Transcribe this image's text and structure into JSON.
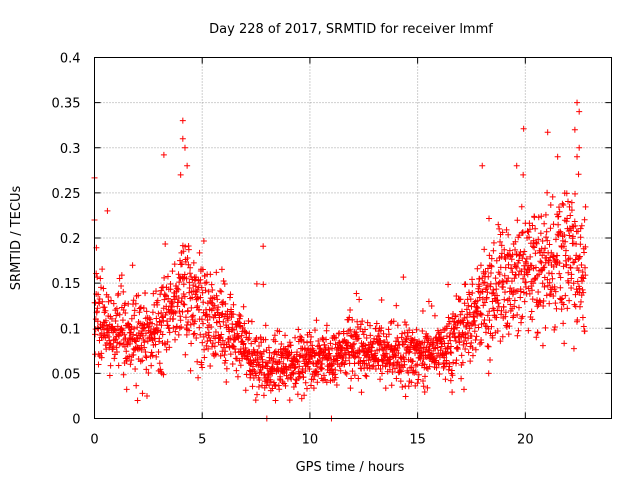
{
  "chart_data": {
    "type": "scatter",
    "title": "Day 228 of 2017, SRMTID for receiver lmmf",
    "xlabel": "GPS time / hours",
    "ylabel": "SRMTID / TECUs",
    "xlim": [
      0,
      24
    ],
    "ylim": [
      0,
      0.4
    ],
    "xticks": [
      0,
      5,
      10,
      15,
      20
    ],
    "yticks": [
      0,
      0.05,
      0.1,
      0.15,
      0.2,
      0.25,
      0.3,
      0.35,
      0.4
    ],
    "xtick_labels": [
      "0",
      "5",
      "10",
      "15",
      "20"
    ],
    "ytick_labels": [
      "0",
      "0.05",
      "0.1",
      "0.15",
      "0.2",
      "0.25",
      "0.3",
      "0.35",
      "0.4"
    ],
    "grid": true,
    "marker": "plus",
    "color": "#ff0000",
    "trend": [
      {
        "x": 0.0,
        "y": 0.115
      },
      {
        "x": 1.0,
        "y": 0.095
      },
      {
        "x": 2.0,
        "y": 0.09
      },
      {
        "x": 3.0,
        "y": 0.1
      },
      {
        "x": 4.0,
        "y": 0.135
      },
      {
        "x": 5.0,
        "y": 0.12
      },
      {
        "x": 6.0,
        "y": 0.1
      },
      {
        "x": 7.0,
        "y": 0.08
      },
      {
        "x": 8.0,
        "y": 0.055
      },
      {
        "x": 9.0,
        "y": 0.06
      },
      {
        "x": 10.0,
        "y": 0.065
      },
      {
        "x": 11.0,
        "y": 0.07
      },
      {
        "x": 12.0,
        "y": 0.075
      },
      {
        "x": 13.0,
        "y": 0.075
      },
      {
        "x": 14.0,
        "y": 0.07
      },
      {
        "x": 15.0,
        "y": 0.07
      },
      {
        "x": 16.0,
        "y": 0.075
      },
      {
        "x": 17.0,
        "y": 0.09
      },
      {
        "x": 18.0,
        "y": 0.13
      },
      {
        "x": 19.0,
        "y": 0.15
      },
      {
        "x": 20.0,
        "y": 0.16
      },
      {
        "x": 21.0,
        "y": 0.17
      },
      {
        "x": 22.0,
        "y": 0.185
      },
      {
        "x": 22.8,
        "y": 0.15
      }
    ],
    "spread": [
      {
        "x": 0.0,
        "s": 0.03
      },
      {
        "x": 3.0,
        "s": 0.03
      },
      {
        "x": 4.5,
        "s": 0.045
      },
      {
        "x": 6.0,
        "s": 0.03
      },
      {
        "x": 8.0,
        "s": 0.02
      },
      {
        "x": 12.0,
        "s": 0.022
      },
      {
        "x": 16.0,
        "s": 0.02
      },
      {
        "x": 17.5,
        "s": 0.035
      },
      {
        "x": 19.0,
        "s": 0.045
      },
      {
        "x": 22.0,
        "s": 0.05
      },
      {
        "x": 22.8,
        "s": 0.05
      }
    ],
    "sample_count": 2200,
    "x_range": [
      0.0,
      22.8
    ],
    "highlights": [
      {
        "x": 0.0,
        "y": 0.22
      },
      {
        "x": 0.6,
        "y": 0.23
      },
      {
        "x": 4.1,
        "y": 0.33
      },
      {
        "x": 4.1,
        "y": 0.31
      },
      {
        "x": 4.2,
        "y": 0.3
      },
      {
        "x": 4.3,
        "y": 0.28
      },
      {
        "x": 4.0,
        "y": 0.27
      },
      {
        "x": 18.0,
        "y": 0.28
      },
      {
        "x": 19.6,
        "y": 0.28
      },
      {
        "x": 19.9,
        "y": 0.27
      },
      {
        "x": 21.5,
        "y": 0.29
      },
      {
        "x": 22.4,
        "y": 0.35
      },
      {
        "x": 22.5,
        "y": 0.34
      },
      {
        "x": 22.3,
        "y": 0.32
      },
      {
        "x": 22.5,
        "y": 0.3
      },
      {
        "x": 22.4,
        "y": 0.29
      },
      {
        "x": 8.0,
        "y": 0.0
      },
      {
        "x": 11.0,
        "y": 0.0
      },
      {
        "x": 2.0,
        "y": 0.02
      },
      {
        "x": 18.3,
        "y": 0.05
      }
    ]
  }
}
